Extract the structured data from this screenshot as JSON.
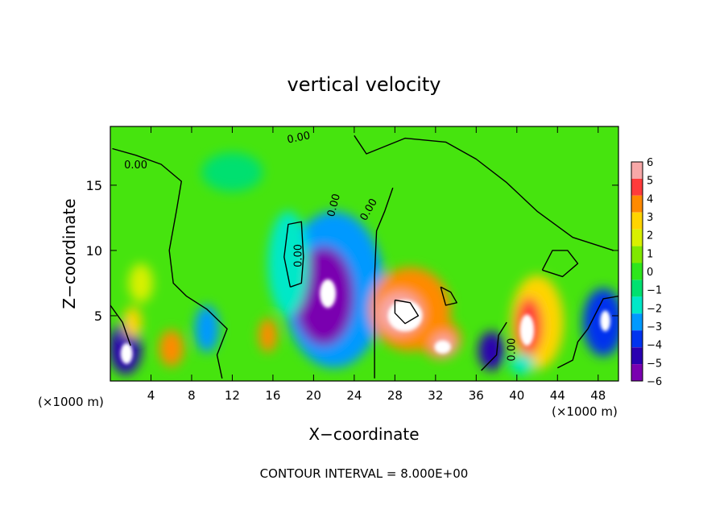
{
  "chart_data": {
    "type": "heatmap",
    "title": "vertical velocity",
    "xlabel": "X−coordinate",
    "ylabel": "Z−coordinate",
    "x_unit_left": "(×1000 m)",
    "x_unit_right": "(×1000 m)",
    "xlim": [
      0,
      50
    ],
    "ylim": [
      0,
      19.5
    ],
    "x_ticks": [
      4,
      8,
      12,
      16,
      20,
      24,
      28,
      32,
      36,
      40,
      44,
      48
    ],
    "y_ticks": [
      5,
      10,
      15
    ],
    "footer": "CONTOUR INTERVAL = 8.000E+00",
    "contour_labels": [
      {
        "text": "0.00",
        "x": 2.5,
        "y": 16.3,
        "rotate": 0
      },
      {
        "text": "0.00",
        "x": 18.6,
        "y": 18.4,
        "rotate": -12
      },
      {
        "text": "0.00",
        "x": 22.3,
        "y": 13.4,
        "rotate": -75
      },
      {
        "text": "0.00",
        "x": 25.7,
        "y": 13.0,
        "rotate": -60
      },
      {
        "text": "0.00",
        "x": 18.8,
        "y": 9.6,
        "rotate": -90
      },
      {
        "text": "0.00",
        "x": 39.8,
        "y": 2.4,
        "rotate": -90
      }
    ],
    "colorbar": {
      "labels": [
        "6",
        "5",
        "4",
        "3",
        "2",
        "1",
        "0",
        "−1",
        "−2",
        "−3",
        "−4",
        "−5",
        "−6"
      ],
      "colors": [
        "#f7a8a8",
        "#ff3b3b",
        "#ff8a00",
        "#ffd400",
        "#d8f000",
        "#80e800",
        "#2ee61c",
        "#00e070",
        "#00e8c8",
        "#0099ff",
        "#0033ee",
        "#2a00b0",
        "#7a00b0"
      ]
    },
    "blobs": [
      {
        "value": -3,
        "x": 22,
        "y": 7,
        "rx": 5,
        "ry": 6
      },
      {
        "value": -5.5,
        "x": 21,
        "y": 6.5,
        "rx": 3,
        "ry": 3.8
      },
      {
        "value": -6,
        "x": 21.5,
        "y": 6.8,
        "rx": 1.4,
        "ry": 1.9
      },
      {
        "value": -1.5,
        "x": 17.5,
        "y": 9,
        "rx": 2,
        "ry": 4
      },
      {
        "value": 4,
        "x": 29.5,
        "y": 5.5,
        "rx": 4,
        "ry": 3.2
      },
      {
        "value": 6,
        "x": 28.5,
        "y": 5.2,
        "rx": 2.2,
        "ry": 1.6
      },
      {
        "value": 4.5,
        "x": 32.5,
        "y": 3.2,
        "rx": 2,
        "ry": 1.5
      },
      {
        "value": 6,
        "x": 32.8,
        "y": 2.8,
        "rx": 1.1,
        "ry": 0.8
      },
      {
        "value": 3.5,
        "x": 42,
        "y": 4.5,
        "rx": 2.6,
        "ry": 3.6
      },
      {
        "value": 5.5,
        "x": 41.2,
        "y": 4.2,
        "rx": 1.3,
        "ry": 2.2
      },
      {
        "value": -4,
        "x": 48.5,
        "y": 4.5,
        "rx": 2,
        "ry": 2.6
      },
      {
        "value": -5,
        "x": 1.5,
        "y": 2.5,
        "rx": 1.6,
        "ry": 2
      },
      {
        "value": 3.5,
        "x": 2.2,
        "y": 4.5,
        "rx": 0.9,
        "ry": 1.2
      },
      {
        "value": 4,
        "x": 6,
        "y": 2.5,
        "rx": 1.2,
        "ry": 1.4
      },
      {
        "value": 2,
        "x": 3,
        "y": 7.5,
        "rx": 1.2,
        "ry": 1.5
      },
      {
        "value": 4,
        "x": 15.5,
        "y": 3.5,
        "rx": 0.9,
        "ry": 1.3
      },
      {
        "value": -4.5,
        "x": 37.5,
        "y": 2.3,
        "rx": 1.3,
        "ry": 1.5
      },
      {
        "value": -3,
        "x": 9.5,
        "y": 4,
        "rx": 1.2,
        "ry": 1.8
      },
      {
        "value": -2,
        "x": 40.5,
        "y": 1.3,
        "rx": 1.2,
        "ry": 0.8
      },
      {
        "value": -1,
        "x": 12,
        "y": 16,
        "rx": 3,
        "ry": 1.5
      }
    ],
    "white_areas": [
      {
        "x": 21.4,
        "y": 6.7,
        "rx": 0.8,
        "ry": 1.1
      },
      {
        "x": 29,
        "y": 5,
        "rx": 1.7,
        "ry": 1.2
      },
      {
        "x": 32.7,
        "y": 2.6,
        "rx": 0.8,
        "ry": 0.5
      },
      {
        "x": 41,
        "y": 3.9,
        "rx": 0.7,
        "ry": 1.2
      },
      {
        "x": 1.6,
        "y": 2.1,
        "rx": 0.6,
        "ry": 0.8
      },
      {
        "x": 48.7,
        "y": 4.6,
        "rx": 0.5,
        "ry": 0.8
      }
    ],
    "contours": [
      [
        [
          0.2,
          17.8
        ],
        [
          2.5,
          17.3
        ],
        [
          5,
          16.6
        ],
        [
          7,
          15.3
        ],
        [
          6.5,
          13
        ],
        [
          5.8,
          10
        ],
        [
          6.2,
          7.5
        ],
        [
          7.5,
          6.5
        ],
        [
          9.5,
          5.5
        ],
        [
          11.5,
          4
        ],
        [
          10.5,
          2
        ],
        [
          11,
          0.2
        ]
      ],
      [
        [
          24,
          18.8
        ],
        [
          25.2,
          17.4
        ],
        [
          29,
          18.6
        ],
        [
          33,
          18.3
        ],
        [
          36,
          17
        ],
        [
          39,
          15.2
        ],
        [
          42,
          13
        ],
        [
          45.5,
          11
        ],
        [
          49.5,
          10
        ]
      ],
      [
        [
          26,
          0.2
        ],
        [
          26,
          4
        ],
        [
          26,
          8
        ],
        [
          26.2,
          11.5
        ],
        [
          27,
          13
        ],
        [
          27.8,
          14.8
        ]
      ],
      [
        [
          17.7,
          7.2
        ],
        [
          17.1,
          9.5
        ],
        [
          17.5,
          12
        ],
        [
          18.8,
          12.2
        ],
        [
          19,
          9.5
        ],
        [
          18.8,
          7.5
        ],
        [
          17.7,
          7.2
        ]
      ],
      [
        [
          42.5,
          8.5
        ],
        [
          43.5,
          10
        ],
        [
          45,
          10
        ],
        [
          46,
          9
        ],
        [
          44.5,
          8
        ],
        [
          42.5,
          8.5
        ]
      ],
      [
        [
          32.5,
          7.2
        ],
        [
          33.5,
          6.8
        ],
        [
          34.1,
          6
        ],
        [
          33,
          5.8
        ],
        [
          32.5,
          7.2
        ]
      ],
      [
        [
          28,
          6.2
        ],
        [
          29.5,
          6
        ],
        [
          30.3,
          5
        ],
        [
          29,
          4.4
        ],
        [
          28,
          5.2
        ],
        [
          28,
          6.2
        ]
      ],
      [
        [
          44,
          1
        ],
        [
          45.5,
          1.6
        ],
        [
          46,
          3
        ],
        [
          47,
          4
        ],
        [
          48.5,
          6.3
        ],
        [
          50,
          6.5
        ]
      ],
      [
        [
          36.5,
          0.8
        ],
        [
          38,
          2
        ],
        [
          38.2,
          3.5
        ],
        [
          39,
          4.5
        ]
      ],
      [
        [
          0,
          5.8
        ],
        [
          1.2,
          4.5
        ],
        [
          2,
          2.7
        ]
      ]
    ]
  }
}
